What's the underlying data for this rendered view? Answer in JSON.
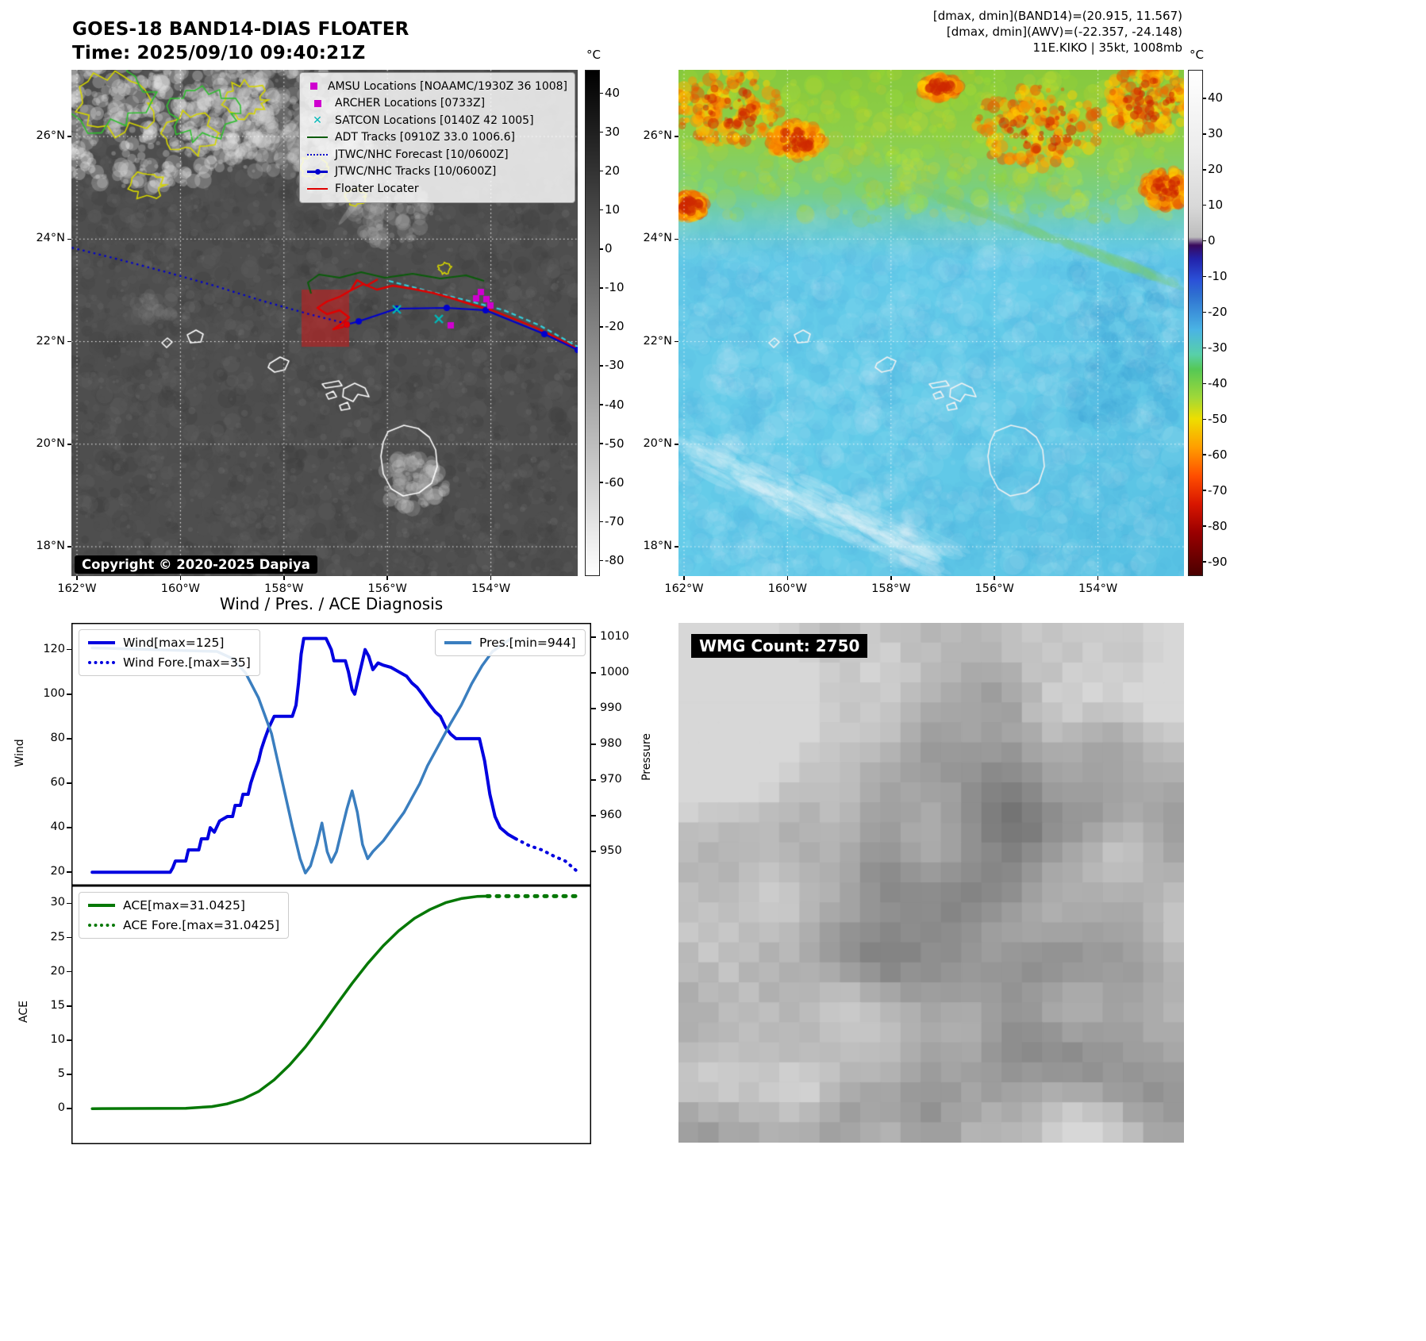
{
  "band14_panel": {
    "title": "GOES-18 BAND14-DIAS FLOATER",
    "time_line": "Time: 2025/09/10 09:40:21Z",
    "copyright": "Copyright © 2020-2025 Dapiya",
    "legend": [
      {
        "label": "AMSU Locations [NOAAMC/1930Z 36 1008]",
        "marker": "square",
        "color": "#cf00cf"
      },
      {
        "label": "ARCHER Locations [0733Z]",
        "marker": "square",
        "color": "#cf00cf"
      },
      {
        "label": "SATCON Locations [0140Z 42 1005]",
        "marker": "x",
        "color": "#00b8b8"
      },
      {
        "label": "ADT Tracks [0910Z 33.0 1006.6]",
        "marker": "line",
        "color": "#0a5c0a"
      },
      {
        "label": "JTWC/NHC Forecast [10/0600Z]",
        "marker": "dotted-line",
        "color": "#0000cd"
      },
      {
        "label": "JTWC/NHC Tracks [10/0600Z]",
        "marker": "line-marker",
        "color": "#0000cd"
      },
      {
        "label": "Floater Locater",
        "marker": "line",
        "color": "#e00000"
      }
    ],
    "colorbar": {
      "unit": "°C",
      "ticks": [
        40,
        30,
        20,
        10,
        0,
        -10,
        -20,
        -30,
        -40,
        -50,
        -60,
        -70,
        -80
      ]
    },
    "lon_ticks": [
      "162°W",
      "160°W",
      "158°W",
      "156°W",
      "154°W"
    ],
    "lat_ticks": [
      "26°N",
      "24°N",
      "22°N",
      "20°N",
      "18°N"
    ]
  },
  "awv_panel": {
    "header_lines": [
      "[dmax, dmin](BAND14)=(20.915, 11.567)",
      "[dmax, dmin](AWV)=(-22.357, -24.148)",
      "11E.KIKO | 35kt, 1008mb"
    ],
    "colorbar": {
      "unit": "°C",
      "ticks": [
        40,
        30,
        20,
        10,
        0,
        -10,
        -20,
        -30,
        -40,
        -50,
        -60,
        -70,
        -80,
        -90
      ]
    },
    "lon_ticks": [
      "162°W",
      "160°W",
      "158°W",
      "156°W",
      "154°W"
    ],
    "lat_ticks": [
      "26°N",
      "24°N",
      "22°N",
      "20°N",
      "18°N"
    ]
  },
  "diagnosis": {
    "title": "Wind / Pres. / ACE Diagnosis"
  },
  "wmg_panel": {
    "label": "WMG Count: 2750"
  },
  "chart_data": [
    {
      "type": "line",
      "title": "Wind / Pres. / ACE Diagnosis",
      "xlabel": "",
      "ylabel_left": "Wind",
      "ylabel_right": "Pressure",
      "y_ticks_left": [
        20,
        40,
        60,
        80,
        100,
        120
      ],
      "y_ticks_right": [
        950,
        960,
        970,
        980,
        990,
        1000,
        1010
      ],
      "ylim_left": [
        14,
        132
      ],
      "ylim_right": [
        940.5,
        1014
      ],
      "grid": false,
      "legend": [
        {
          "label": "Wind[max=125]",
          "series": "Wind"
        },
        {
          "label": "Wind Fore.[max=35]",
          "series": "Wind Fore."
        },
        {
          "label": "Pres.[min=944]",
          "series": "Pres."
        }
      ],
      "series": [
        {
          "name": "Wind",
          "axis": "left",
          "color": "#0000e0",
          "style": "solid",
          "width": 4,
          "points": [
            [
              0.04,
              20
            ],
            [
              0.19,
              20
            ],
            [
              0.195,
              22
            ],
            [
              0.2,
              25
            ],
            [
              0.22,
              25
            ],
            [
              0.225,
              30
            ],
            [
              0.245,
              30
            ],
            [
              0.25,
              35
            ],
            [
              0.262,
              35
            ],
            [
              0.267,
              40
            ],
            [
              0.275,
              38
            ],
            [
              0.285,
              43
            ],
            [
              0.3,
              45
            ],
            [
              0.31,
              45
            ],
            [
              0.315,
              50
            ],
            [
              0.325,
              50
            ],
            [
              0.33,
              55
            ],
            [
              0.34,
              55
            ],
            [
              0.345,
              60
            ],
            [
              0.352,
              65
            ],
            [
              0.36,
              70
            ],
            [
              0.365,
              75
            ],
            [
              0.372,
              80
            ],
            [
              0.38,
              85
            ],
            [
              0.39,
              90
            ],
            [
              0.425,
              90
            ],
            [
              0.432,
              95
            ],
            [
              0.437,
              105
            ],
            [
              0.442,
              118
            ],
            [
              0.447,
              125
            ],
            [
              0.49,
              125
            ],
            [
              0.5,
              120
            ],
            [
              0.505,
              115
            ],
            [
              0.527,
              115
            ],
            [
              0.533,
              110
            ],
            [
              0.54,
              102
            ],
            [
              0.545,
              100
            ],
            [
              0.552,
              107
            ],
            [
              0.558,
              113
            ],
            [
              0.565,
              120
            ],
            [
              0.572,
              117
            ],
            [
              0.58,
              111
            ],
            [
              0.59,
              114
            ],
            [
              0.6,
              113
            ],
            [
              0.615,
              112
            ],
            [
              0.63,
              110
            ],
            [
              0.645,
              108
            ],
            [
              0.655,
              105
            ],
            [
              0.665,
              103
            ],
            [
              0.675,
              100
            ],
            [
              0.69,
              95
            ],
            [
              0.7,
              92
            ],
            [
              0.71,
              90
            ],
            [
              0.72,
              85
            ],
            [
              0.73,
              82
            ],
            [
              0.74,
              80
            ],
            [
              0.785,
              80
            ],
            [
              0.795,
              70
            ],
            [
              0.805,
              55
            ],
            [
              0.815,
              45
            ],
            [
              0.825,
              40
            ],
            [
              0.84,
              37
            ],
            [
              0.855,
              35
            ]
          ]
        },
        {
          "name": "Wind Fore.",
          "axis": "left",
          "color": "#0000e0",
          "style": "dotted",
          "width": 4,
          "points": [
            [
              0.855,
              35
            ],
            [
              0.88,
              32
            ],
            [
              0.905,
              30
            ],
            [
              0.93,
              27
            ],
            [
              0.95,
              25
            ],
            [
              0.965,
              22
            ],
            [
              0.975,
              20
            ]
          ]
        },
        {
          "name": "Pres.",
          "axis": "right",
          "color": "#3a7ebf",
          "style": "solid",
          "width": 3.5,
          "points": [
            [
              0.04,
              1007
            ],
            [
              0.28,
              1006
            ],
            [
              0.31,
              1004
            ],
            [
              0.335,
              1000
            ],
            [
              0.36,
              993
            ],
            [
              0.385,
              983
            ],
            [
              0.405,
              970
            ],
            [
              0.425,
              957
            ],
            [
              0.44,
              948
            ],
            [
              0.45,
              944
            ],
            [
              0.46,
              946
            ],
            [
              0.472,
              952
            ],
            [
              0.482,
              958
            ],
            [
              0.492,
              950
            ],
            [
              0.5,
              947
            ],
            [
              0.51,
              950
            ],
            [
              0.52,
              956
            ],
            [
              0.53,
              962
            ],
            [
              0.54,
              967
            ],
            [
              0.55,
              961
            ],
            [
              0.56,
              952
            ],
            [
              0.57,
              948
            ],
            [
              0.58,
              950
            ],
            [
              0.6,
              953
            ],
            [
              0.62,
              957
            ],
            [
              0.64,
              961
            ],
            [
              0.655,
              965
            ],
            [
              0.67,
              969
            ],
            [
              0.685,
              974
            ],
            [
              0.7,
              978
            ],
            [
              0.715,
              982
            ],
            [
              0.73,
              986
            ],
            [
              0.75,
              991
            ],
            [
              0.77,
              997
            ],
            [
              0.79,
              1002
            ],
            [
              0.81,
              1006
            ],
            [
              0.83,
              1008
            ],
            [
              0.845,
              1009.5
            ]
          ]
        }
      ]
    },
    {
      "type": "line",
      "title": "",
      "xlabel": "",
      "ylabel_left": "ACE",
      "y_ticks_left": [
        0,
        5,
        10,
        15,
        20,
        25,
        30
      ],
      "ylim_left": [
        -5.2,
        32.6
      ],
      "grid": false,
      "legend": [
        {
          "label": "ACE[max=31.0425]",
          "series": "ACE"
        },
        {
          "label": "ACE Fore.[max=31.0425]",
          "series": "ACE Fore."
        }
      ],
      "series": [
        {
          "name": "ACE",
          "axis": "left",
          "color": "#067806",
          "style": "solid",
          "width": 3.5,
          "points": [
            [
              0.04,
              0
            ],
            [
              0.22,
              0.05
            ],
            [
              0.27,
              0.3
            ],
            [
              0.3,
              0.7
            ],
            [
              0.33,
              1.4
            ],
            [
              0.36,
              2.5
            ],
            [
              0.39,
              4.2
            ],
            [
              0.42,
              6.4
            ],
            [
              0.45,
              9
            ],
            [
              0.48,
              12
            ],
            [
              0.51,
              15.2
            ],
            [
              0.54,
              18.3
            ],
            [
              0.57,
              21.2
            ],
            [
              0.6,
              23.8
            ],
            [
              0.63,
              26
            ],
            [
              0.66,
              27.8
            ],
            [
              0.69,
              29.1
            ],
            [
              0.72,
              30.1
            ],
            [
              0.75,
              30.7
            ],
            [
              0.78,
              31
            ],
            [
              0.8,
              31.0425
            ]
          ]
        },
        {
          "name": "ACE Fore.",
          "axis": "left",
          "color": "#067806",
          "style": "dotted",
          "width": 5,
          "points": [
            [
              0.8,
              31.0425
            ],
            [
              0.97,
              31.0425
            ]
          ]
        }
      ]
    }
  ]
}
